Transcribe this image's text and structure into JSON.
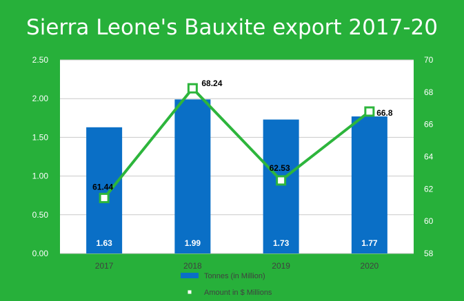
{
  "chart_data": {
    "type": "bar",
    "title": "Sierra Leone's Bauxite export 2017-20",
    "categories": [
      "2017",
      "2018",
      "2019",
      "2020"
    ],
    "series": [
      {
        "name": "Tonnes (in Million)",
        "type": "bar",
        "axis": "left",
        "values": [
          1.63,
          1.99,
          1.73,
          1.77
        ],
        "color": "#0a6fc6",
        "labels": [
          "1.63",
          "1.99",
          "1.73",
          "1.77"
        ]
      },
      {
        "name": "Amount in $ Millions",
        "type": "line",
        "axis": "right",
        "values": [
          61.44,
          68.24,
          62.53,
          66.8
        ],
        "color": "#2db53c",
        "labels": [
          "61.44",
          "68.24",
          "62.53",
          "66.8"
        ]
      }
    ],
    "y_left": {
      "lim": [
        0,
        2.5
      ],
      "ticks": [
        "0.00",
        "0.50",
        "1.00",
        "1.50",
        "2.00",
        "2.50"
      ]
    },
    "y_right": {
      "lim": [
        58,
        70
      ],
      "ticks": [
        "58",
        "60",
        "62",
        "64",
        "66",
        "68",
        "70"
      ]
    },
    "grid": true,
    "legend": "bottom",
    "colors": {
      "background": "#27b03a",
      "plot_area": "#ffffff"
    }
  }
}
